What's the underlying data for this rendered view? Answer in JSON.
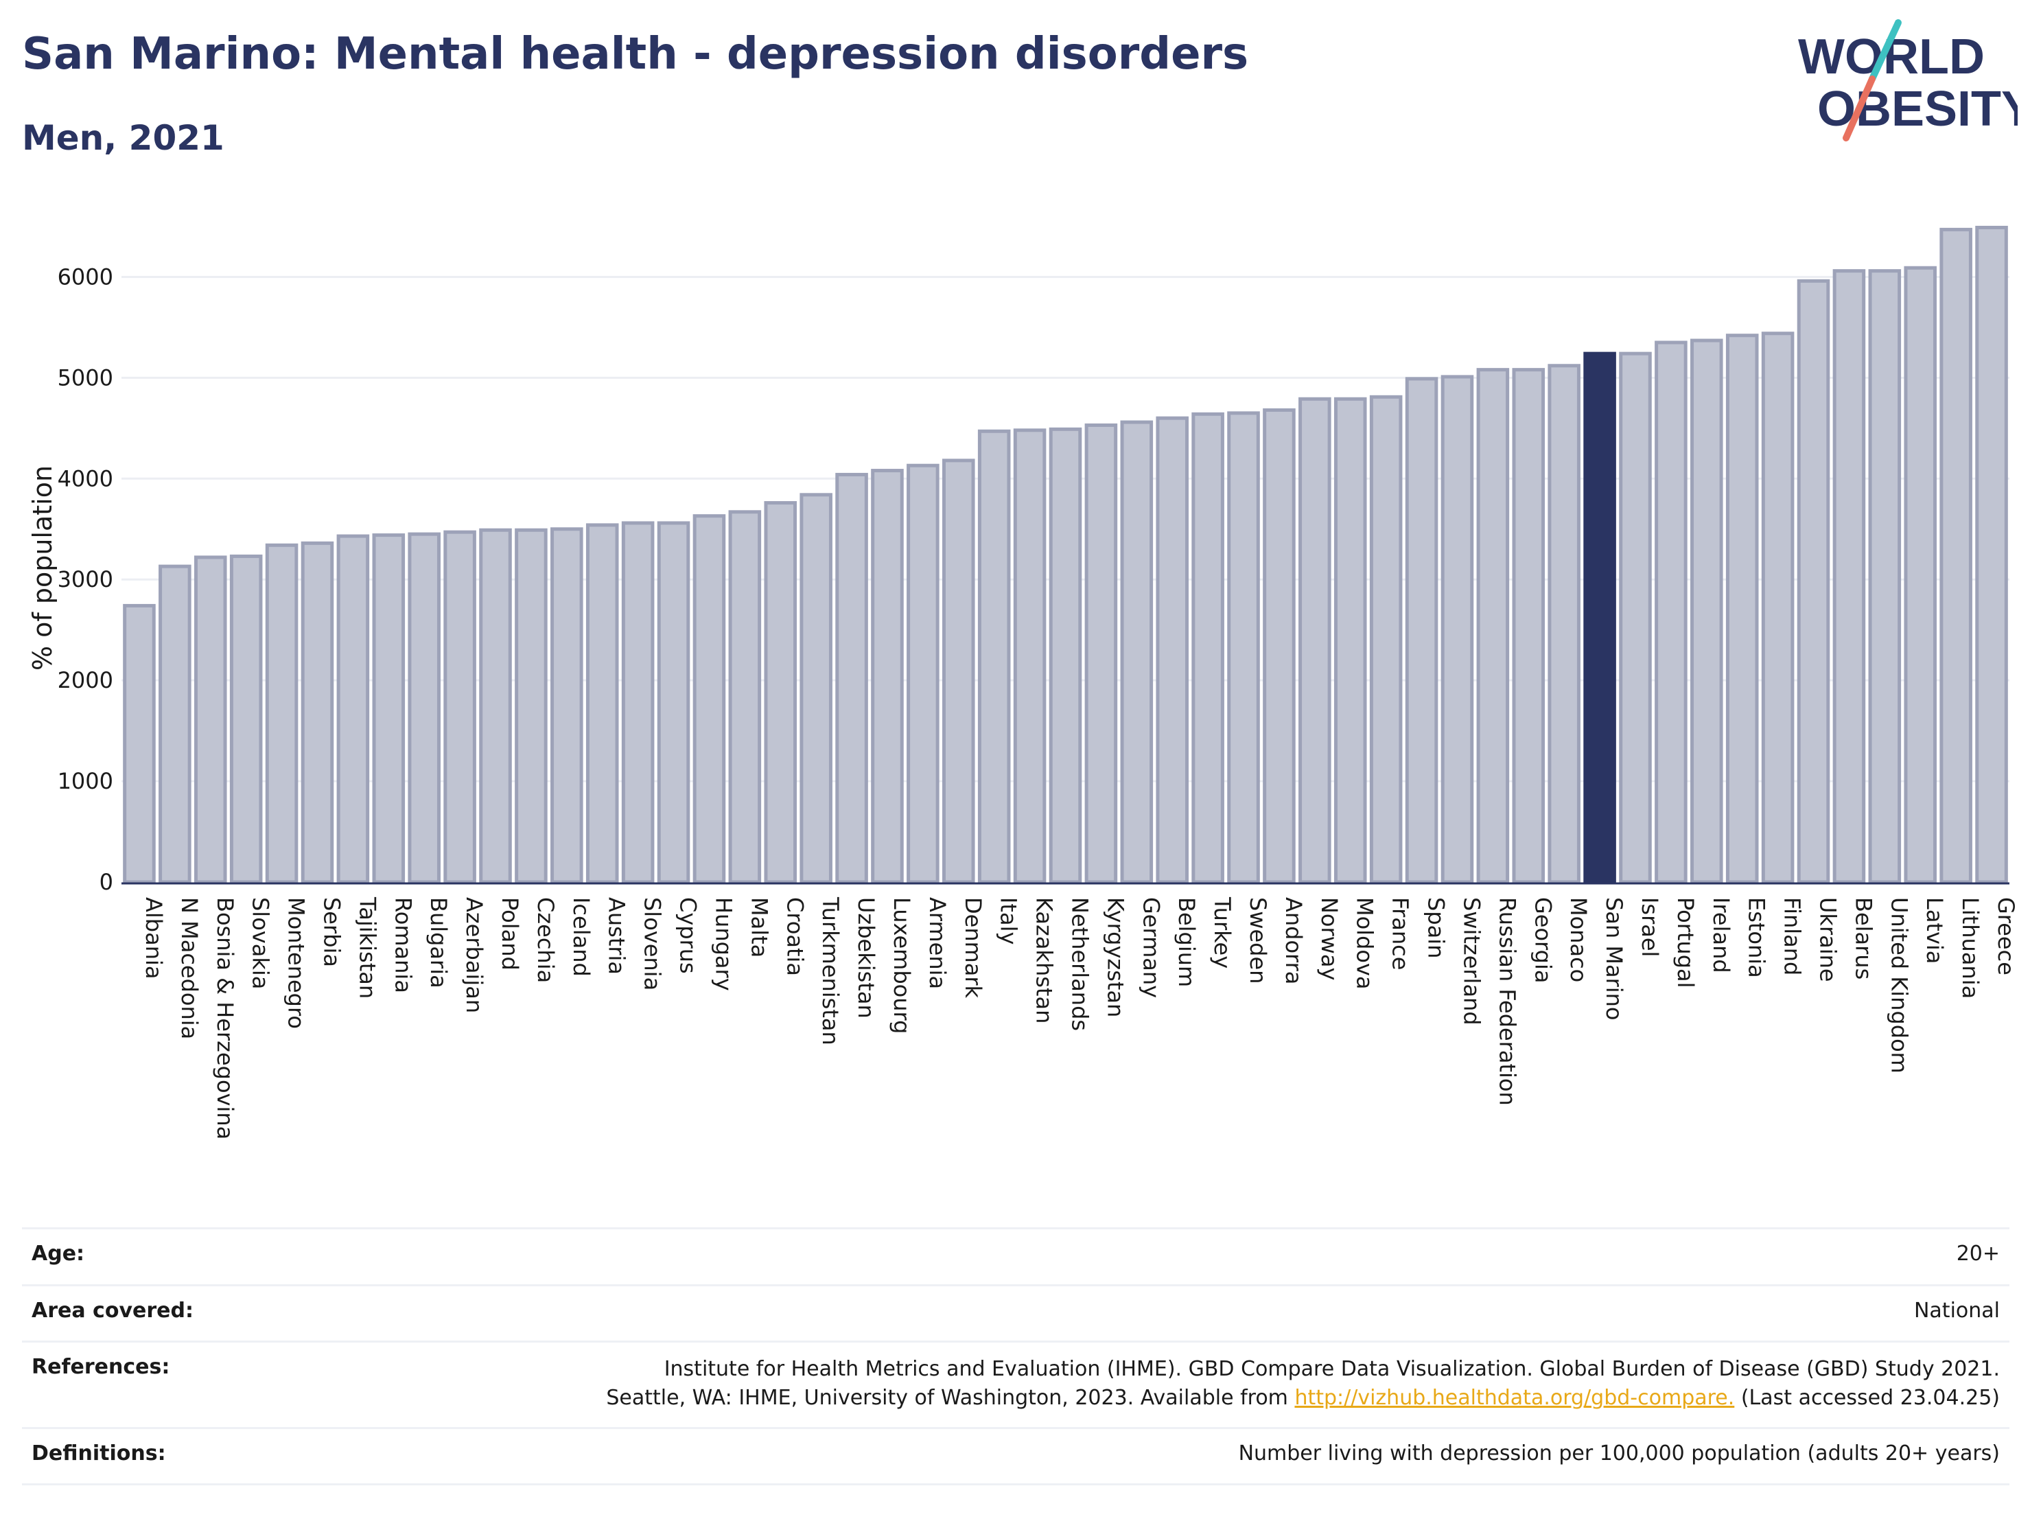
{
  "header": {
    "title": "San Marino: Mental health - depression disorders",
    "subtitle": "Men, 2021"
  },
  "logo": {
    "line1": "WORLD",
    "line2": "OBESITY",
    "colors": {
      "text": "#2a3462",
      "slash_teal": "#3ec1c1",
      "slash_coral": "#e8715f"
    }
  },
  "chart_data": {
    "type": "bar",
    "ylabel": "% of population",
    "xlabel": "",
    "ylim": [
      0,
      6500
    ],
    "yticks": [
      0,
      1000,
      2000,
      3000,
      4000,
      5000,
      6000
    ],
    "grid": true,
    "highlight": "San Marino",
    "colors": {
      "bar": "#c0c4d2",
      "bar_edge": "#9da2b8",
      "highlight": "#2a3462"
    },
    "categories": [
      "Albania",
      "N Macedonia",
      "Bosnia & Herzegovina",
      "Slovakia",
      "Montenegro",
      "Serbia",
      "Tajikistan",
      "Romania",
      "Bulgaria",
      "Azerbaijan",
      "Poland",
      "Czechia",
      "Iceland",
      "Austria",
      "Slovenia",
      "Cyprus",
      "Hungary",
      "Malta",
      "Croatia",
      "Turkmenistan",
      "Uzbekistan",
      "Luxembourg",
      "Armenia",
      "Denmark",
      "Italy",
      "Kazakhstan",
      "Netherlands",
      "Kyrgyzstan",
      "Germany",
      "Belgium",
      "Turkey",
      "Sweden",
      "Andorra",
      "Norway",
      "Moldova",
      "France",
      "Spain",
      "Switzerland",
      "Russian Federation",
      "Georgia",
      "Monaco",
      "San Marino",
      "Israel",
      "Portugal",
      "Ireland",
      "Estonia",
      "Finland",
      "Ukraine",
      "Belarus",
      "United Kingdom",
      "Latvia",
      "Lithuania",
      "Greece"
    ],
    "values": [
      2740,
      3130,
      3220,
      3230,
      3340,
      3360,
      3430,
      3440,
      3450,
      3470,
      3490,
      3490,
      3500,
      3540,
      3560,
      3560,
      3630,
      3670,
      3760,
      3840,
      4040,
      4080,
      4130,
      4180,
      4470,
      4480,
      4490,
      4530,
      4560,
      4600,
      4640,
      4650,
      4680,
      4790,
      4790,
      4810,
      4990,
      5010,
      5080,
      5080,
      5120,
      5240,
      5240,
      5350,
      5370,
      5420,
      5440,
      5960,
      6060,
      6060,
      6090,
      6470,
      6490
    ]
  },
  "info": {
    "age": {
      "label": "Age:",
      "value": "20+"
    },
    "area": {
      "label": "Area covered:",
      "value": "National"
    },
    "references": {
      "label": "References:",
      "line1": "Institute for Health Metrics and Evaluation (IHME). GBD Compare Data Visualization. Global Burden of Disease (GBD) Study 2021.",
      "line2_prefix": "Seattle, WA: IHME, University of Washington, 2023. Available from ",
      "link": "http://vizhub.healthdata.org/gbd-compare.",
      "line2_suffix": " (Last accessed 23.04.25)"
    },
    "definitions": {
      "label": "Definitions:",
      "value": "Number living with depression per 100,000 population (adults 20+ years)"
    }
  }
}
